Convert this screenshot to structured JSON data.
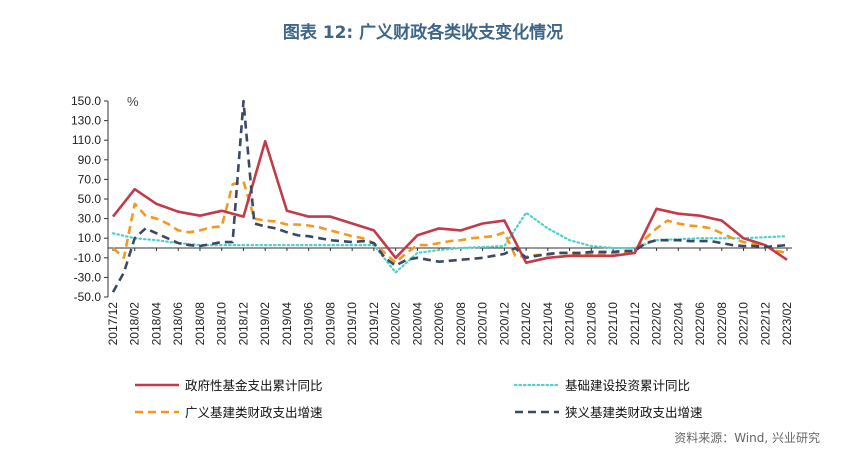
{
  "chart_data": {
    "type": "line",
    "title": "图表 12: 广义财政各类收支变化情况",
    "unit": "%",
    "source": "资料来源：Wind, 兴业研究",
    "ylim": [
      -50,
      150
    ],
    "yticks": [
      "150.0",
      "130.0",
      "110.0",
      "90.0",
      "70.0",
      "50.0",
      "30.0",
      "10.0",
      "-10.0",
      "-30.0",
      "-50.0"
    ],
    "ytick_values": [
      150,
      130,
      110,
      90,
      70,
      50,
      30,
      10,
      -10,
      -30,
      -50
    ],
    "xtick_labels": [
      "2017/12",
      "2018/02",
      "2018/04",
      "2018/06",
      "2018/08",
      "2018/10",
      "2018/12",
      "2019/02",
      "2019/04",
      "2019/06",
      "2019/08",
      "2019/10",
      "2019/12",
      "2020/02",
      "2020/04",
      "2020/06",
      "2020/08",
      "2020/10",
      "2020/12",
      "2021/02",
      "2021/04",
      "2021/06",
      "2021/08",
      "2021/10",
      "2021/12",
      "2022/02",
      "2022/04",
      "2022/06",
      "2022/08",
      "2022/10",
      "2022/12",
      "2023/02"
    ],
    "x": [
      "2017/12",
      "2018/01",
      "2018/02",
      "2018/03",
      "2018/04",
      "2018/05",
      "2018/06",
      "2018/07",
      "2018/08",
      "2018/09",
      "2018/10",
      "2018/11",
      "2018/12",
      "2019/01",
      "2019/02",
      "2019/03",
      "2019/04",
      "2019/05",
      "2019/06",
      "2019/07",
      "2019/08",
      "2019/09",
      "2019/10",
      "2019/11",
      "2019/12",
      "2020/01",
      "2020/02",
      "2020/03",
      "2020/04",
      "2020/05",
      "2020/06",
      "2020/07",
      "2020/08",
      "2020/09",
      "2020/10",
      "2020/11",
      "2020/12",
      "2021/01",
      "2021/02",
      "2021/03",
      "2021/04",
      "2021/05",
      "2021/06",
      "2021/07",
      "2021/08",
      "2021/09",
      "2021/10",
      "2021/11",
      "2021/12",
      "2022/01",
      "2022/02",
      "2022/03",
      "2022/04",
      "2022/05",
      "2022/06",
      "2022/07",
      "2022/08",
      "2022/09",
      "2022/10",
      "2022/11",
      "2022/12",
      "2023/01",
      "2023/02"
    ],
    "grid": false,
    "series": [
      {
        "name": "政府性基金支出累计同比",
        "color": "#c23b4a",
        "style": "solid",
        "values": [
          32,
          null,
          60,
          null,
          45,
          null,
          37,
          null,
          33,
          null,
          38,
          null,
          32,
          null,
          109,
          null,
          38,
          null,
          32,
          null,
          32,
          null,
          25,
          null,
          18,
          null,
          -10,
          null,
          13,
          null,
          20,
          null,
          18,
          null,
          25,
          null,
          28,
          null,
          -15,
          null,
          -10,
          null,
          -8,
          null,
          -8,
          null,
          -8,
          null,
          -5,
          null,
          40,
          null,
          35,
          null,
          33,
          null,
          28,
          null,
          10,
          null,
          3,
          null,
          -12
        ]
      },
      {
        "name": "基础建设投资累计同比",
        "color": "#4fd0cc",
        "style": "dotted",
        "values": [
          15,
          null,
          10,
          null,
          8,
          null,
          5,
          null,
          3,
          null,
          3,
          null,
          3,
          null,
          3,
          null,
          3,
          null,
          3,
          null,
          3,
          null,
          3,
          null,
          3,
          null,
          -25,
          null,
          -5,
          null,
          -2,
          null,
          0,
          null,
          1,
          null,
          2,
          null,
          36,
          null,
          20,
          null,
          8,
          null,
          2,
          null,
          0,
          null,
          0,
          null,
          8,
          null,
          9,
          null,
          10,
          null,
          10,
          null,
          10,
          null,
          11,
          null,
          12
        ]
      },
      {
        "name": "广义基建类财政支出增速",
        "color": "#f39a1e",
        "style": "dashed",
        "values": [
          0,
          -10,
          45,
          33,
          30,
          25,
          18,
          16,
          18,
          21,
          22,
          65,
          68,
          30,
          28,
          27,
          24,
          24,
          23,
          21,
          18,
          15,
          12,
          10,
          5,
          -5,
          -15,
          -5,
          3,
          3,
          5,
          7,
          8,
          10,
          11,
          12,
          16,
          -8,
          -9,
          -7,
          -7,
          -5,
          -5,
          -6,
          -6,
          -6,
          -5,
          -5,
          -2,
          10,
          20,
          28,
          25,
          23,
          22,
          20,
          15,
          10,
          6,
          4,
          2,
          -3,
          -5
        ]
      },
      {
        "name": "狭义基建类财政支出增速",
        "color": "#3a4a66",
        "style": "dashed",
        "values": [
          -45,
          -25,
          10,
          20,
          15,
          10,
          5,
          3,
          2,
          4,
          6,
          6,
          150,
          25,
          22,
          20,
          16,
          13,
          12,
          10,
          8,
          7,
          6,
          7,
          5,
          -10,
          -18,
          -12,
          -10,
          -12,
          -14,
          -13,
          -12,
          -11,
          -10,
          -8,
          -6,
          0,
          -10,
          -8,
          -6,
          -5,
          -5,
          -5,
          -4,
          -4,
          -4,
          -3,
          -3,
          5,
          8,
          8,
          8,
          7,
          7,
          7,
          5,
          3,
          2,
          2,
          1,
          2,
          3
        ]
      }
    ],
    "legend_position": "bottom"
  }
}
